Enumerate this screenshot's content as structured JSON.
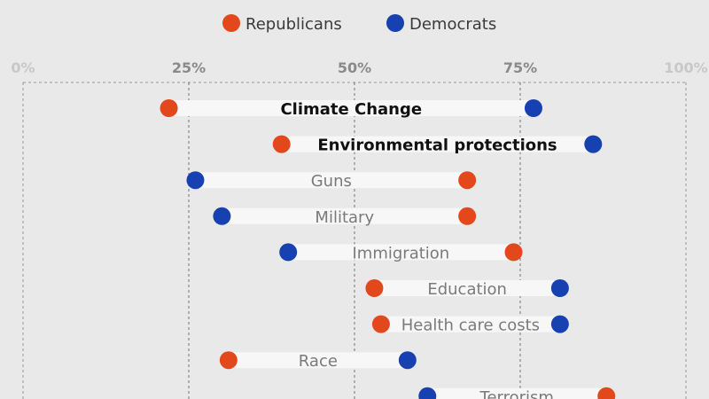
{
  "colors": {
    "republicans": "#e2481c",
    "democrats": "#1740b0",
    "bar": "#f7f7f7",
    "background": "#e9e9e9",
    "grid": "#555555"
  },
  "chart_data": {
    "type": "dumbbell",
    "xlim": [
      0,
      100
    ],
    "ticks": [
      0,
      25,
      50,
      75,
      100
    ],
    "tick_labels": [
      "0%",
      "25%",
      "50%",
      "75%",
      "100%"
    ],
    "grid": "vertical dashed",
    "legend": {
      "placement": "top-center",
      "entries": [
        {
          "name": "Republicans",
          "color": "#e2481c"
        },
        {
          "name": "Democrats",
          "color": "#1740b0"
        }
      ]
    },
    "series": [
      {
        "name": "Republicans",
        "color": "#e2481c"
      },
      {
        "name": "Democrats",
        "color": "#1740b0"
      }
    ],
    "categories": [
      {
        "label": "Climate Change",
        "republicans": 22,
        "democrats": 77,
        "bold": true
      },
      {
        "label": "Environmental protections",
        "republicans": 39,
        "democrats": 86,
        "bold": true
      },
      {
        "label": "Guns",
        "republicans": 67,
        "democrats": 26,
        "bold": false
      },
      {
        "label": "Military",
        "republicans": 67,
        "democrats": 30,
        "bold": false
      },
      {
        "label": "Immigration",
        "republicans": 74,
        "democrats": 40,
        "bold": false
      },
      {
        "label": "Education",
        "republicans": 53,
        "democrats": 81,
        "bold": false
      },
      {
        "label": "Health care costs",
        "republicans": 54,
        "democrats": 81,
        "bold": false
      },
      {
        "label": "Race",
        "republicans": 31,
        "democrats": 58,
        "bold": false
      },
      {
        "label": "Terrorism",
        "republicans": 88,
        "democrats": 61,
        "bold": false
      }
    ]
  }
}
